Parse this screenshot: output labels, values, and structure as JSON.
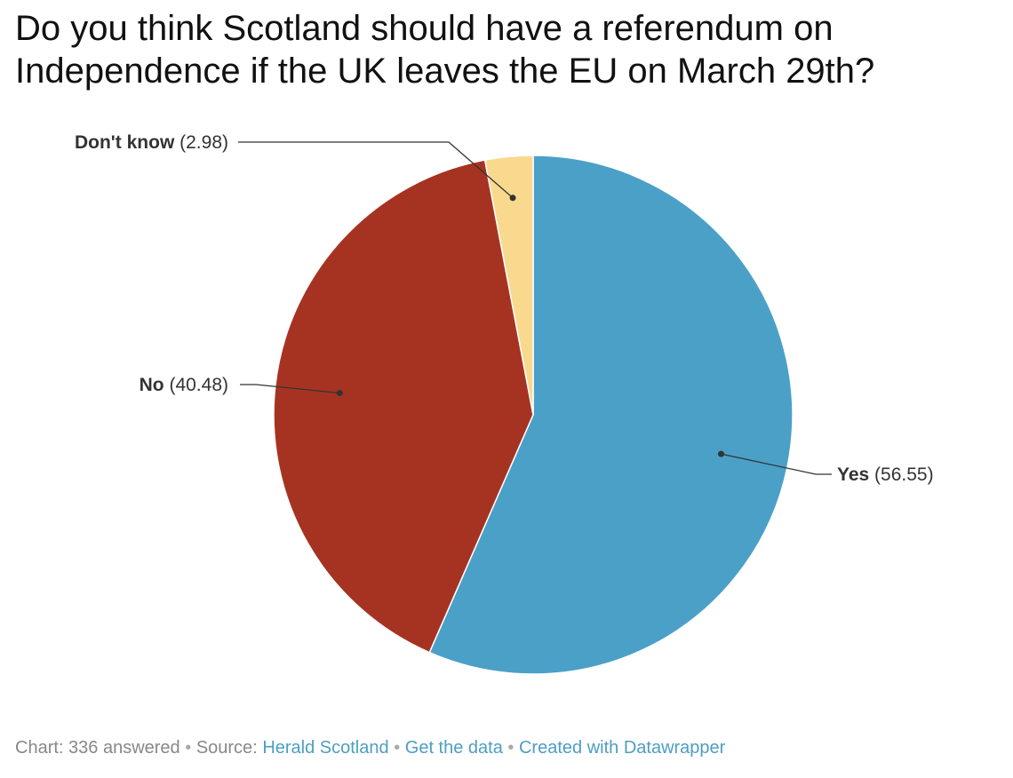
{
  "title": "Do you think Scotland should have a referendum on Independence if the UK leaves the EU on March 29th?",
  "chart_data": {
    "type": "pie",
    "categories": [
      "Yes",
      "No",
      "Don't know"
    ],
    "values": [
      56.55,
      40.48,
      2.98
    ],
    "colors": [
      "#4ba0c8",
      "#a63322",
      "#f9d98e"
    ],
    "label_format": "name (value)",
    "slice_border_color": "#ffffff"
  },
  "footer": {
    "chart_label": "Chart: 336 answered",
    "separator": "•",
    "source_prefix": "Source:",
    "source_link": "Herald Scotland",
    "get_data_link": "Get the data",
    "created_link": "Created with Datawrapper"
  },
  "colors": {
    "title": "#111111",
    "label": "#333333",
    "footer_text": "#888888",
    "footer_link": "#4e9ec3",
    "leader_line": "#333333"
  }
}
